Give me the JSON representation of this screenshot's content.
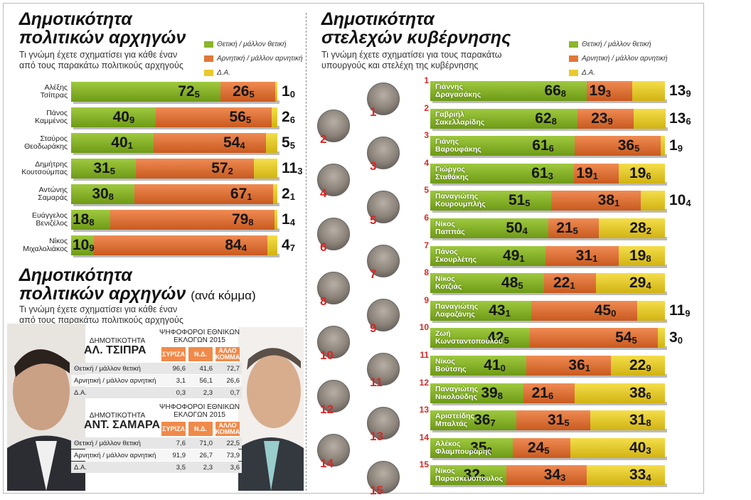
{
  "colors": {
    "positive": "#8ab52b",
    "negative": "#e2763a",
    "dontknow": "#e9c92c",
    "accent": "#d62828"
  },
  "legend": {
    "positive": "Θετική / μάλλον θετική",
    "negative": "Αρνητική / μάλλον αρνητική",
    "dontknow": "Δ.Α."
  },
  "left": {
    "title": "Δημοτικότητα\nπολιτικών αρχηγών",
    "subtitle": "Τι γνώμη έχετε σχηματίσει για κάθε έναν\nαπό τους παρακάτω πολιτικούς αρχηγούς"
  },
  "party": {
    "title": "Δημοτικότητα\nπολιτικών αρχηγών",
    "title_suffix": "(ανά κόμμα)",
    "subtitle": "Τι γνώμη έχετε σχηματίσει για κάθε έναν\nαπό τους παρακάτω πολιτικούς αρχηγούς",
    "tables": [
      {
        "caption": "ΔΗΜΟΤΙΚΟΤΗΤΑ",
        "name": "ΑΛ. ΤΣΙΠΡΑ",
        "voters": "ΨΗΦΟΦΟΡΟΙ ΕΘΝΙΚΩΝ\nΕΚΛΟΓΩΝ 2015",
        "headers": [
          "ΣΥΡΙΖΑ",
          "Ν.Δ.",
          "ΑΛΛΟ\nΚΟΜΜΑ"
        ],
        "rows": [
          {
            "label": "Θετική / μάλλον θετική",
            "v": [
              "96,6",
              "41,6",
              "72,7"
            ]
          },
          {
            "label": "Αρνητική / μάλλον αρνητική",
            "v": [
              "3,1",
              "56,1",
              "26,6"
            ]
          },
          {
            "label": "Δ.Α.",
            "v": [
              "0,3",
              "2,3",
              "0,7"
            ]
          }
        ]
      },
      {
        "caption": "ΔΗΜΟΤΙΚΟΤΗΤΑ",
        "name": "ΑΝΤ. ΣΑΜΑΡΑ",
        "voters": "ΨΗΦΟΦΟΡΟΙ ΕΘΝΙΚΩΝ\nΕΚΛΟΓΩΝ 2015",
        "headers": [
          "ΣΥΡΙΖΑ",
          "Ν.Δ.",
          "ΑΛΛΟ\nΚΟΜΜΑ"
        ],
        "rows": [
          {
            "label": "Θετική / μάλλον θετική",
            "v": [
              "7,6",
              "71,0",
              "22,5"
            ]
          },
          {
            "label": "Αρνητική / μάλλον αρνητική",
            "v": [
              "91,9",
              "26,7",
              "73,9"
            ]
          },
          {
            "label": "Δ.Α.",
            "v": [
              "3,5",
              "2,3",
              "3,6"
            ]
          }
        ]
      }
    ]
  },
  "right": {
    "title": "Δημοτικότητα\nστελεχών κυβέρνησης",
    "subtitle": "Τι γνώμη έχετε σχηματίσει για τους παρακάτω\nυπουργούς και στελέχη της κυβέρνησης"
  },
  "chart_data": [
    {
      "type": "bar",
      "stacked": true,
      "orientation": "horizontal",
      "categories": [
        "Αλέξης\nΤσίπρας",
        "Πάνος\nΚαμμένος",
        "Σταύρος\nΘεοδωράκης",
        "Δημήτρης\nΚουτσούμπας",
        "Αντώνης\nΣαμαράς",
        "Ευάγγελος\nΒενιζέλος",
        "Νίκος\nΜιχαλολιάκος"
      ],
      "series": [
        {
          "name": "Θετική / μάλλον θετική",
          "values": [
            72.5,
            40.9,
            40.1,
            31.5,
            30.8,
            18.8,
            10.9
          ],
          "labels": [
            [
              "72",
              "5"
            ],
            [
              "40",
              "9"
            ],
            [
              "40",
              "1"
            ],
            [
              "31",
              "5"
            ],
            [
              "30",
              "8"
            ],
            [
              "18",
              "8"
            ],
            [
              "10",
              "9"
            ]
          ]
        },
        {
          "name": "Αρνητική / μάλλον αρνητική",
          "values": [
            26.5,
            56.5,
            54.4,
            57.2,
            67.1,
            79.8,
            84.4
          ],
          "labels": [
            [
              "26",
              "5"
            ],
            [
              "56",
              "5"
            ],
            [
              "54",
              "4"
            ],
            [
              "57",
              "2"
            ],
            [
              "67",
              "1"
            ],
            [
              "79",
              "8"
            ],
            [
              "84",
              "4"
            ]
          ]
        },
        {
          "name": "Δ.Α.",
          "values": [
            1.0,
            2.6,
            5.5,
            11.3,
            2.1,
            1.4,
            4.7
          ],
          "labels": [
            [
              "1",
              "0"
            ],
            [
              "2",
              "6"
            ],
            [
              "5",
              "5"
            ],
            [
              "11",
              "3"
            ],
            [
              "2",
              "1"
            ],
            [
              "1",
              "4"
            ],
            [
              "4",
              "7"
            ]
          ]
        }
      ]
    },
    {
      "type": "bar",
      "stacked": true,
      "orientation": "horizontal",
      "categories": [
        "Γιάννης\nΔραγασάκης",
        "Γαβριήλ\nΣακελλαρίδης",
        "Γιάνης\nΒαρουφάκης",
        "Γιώργος\nΣταθάκης",
        "Παναγιώτης\nΚουρουμπλής",
        "Νίκος\nΠαππάς",
        "Πάνος\nΣκουρλέτης",
        "Νίκος\nΚοτζιάς",
        "Παναγιώτης\nΛαφαζάνης",
        "Ζωή\nΚωνσταντοπούλου",
        "Νίκος\nΒούτσης",
        "Παναγιώτης\nΝικολούδης",
        "Αριστείδης\nΜπαλτάς",
        "Αλέκος\nΦλαμπουράρης",
        "Νίκος\nΠαρασκευόπουλος"
      ],
      "index": [
        "1",
        "2",
        "3",
        "4",
        "5",
        "6",
        "7",
        "8",
        "9",
        "10",
        "11",
        "12",
        "13",
        "14",
        "15"
      ],
      "series": [
        {
          "name": "Θετική / μάλλον θετική",
          "values": [
            66.8,
            62.8,
            61.6,
            61.3,
            51.5,
            50.4,
            49.1,
            48.5,
            43.1,
            42.5,
            41.0,
            39.8,
            36.7,
            35.2,
            32.3
          ],
          "labels": [
            [
              "66",
              "8"
            ],
            [
              "62",
              "8"
            ],
            [
              "61",
              "6"
            ],
            [
              "61",
              "3"
            ],
            [
              "51",
              "5"
            ],
            [
              "50",
              "4"
            ],
            [
              "49",
              "1"
            ],
            [
              "48",
              "5"
            ],
            [
              "43",
              "1"
            ],
            [
              "42",
              "5"
            ],
            [
              "41",
              "0"
            ],
            [
              "39",
              "8"
            ],
            [
              "36",
              "7"
            ],
            [
              "35",
              "2"
            ],
            [
              "32",
              "3"
            ]
          ]
        },
        {
          "name": "Αρνητική / μάλλον αρνητική",
          "values": [
            19.3,
            23.9,
            36.5,
            19.1,
            38.1,
            21.5,
            31.1,
            22.1,
            45.0,
            54.5,
            36.1,
            21.6,
            31.5,
            24.5,
            34.3
          ],
          "labels": [
            [
              "19",
              "3"
            ],
            [
              "23",
              "9"
            ],
            [
              "36",
              "5"
            ],
            [
              "19",
              "1"
            ],
            [
              "38",
              "1"
            ],
            [
              "21",
              "5"
            ],
            [
              "31",
              "1"
            ],
            [
              "22",
              "1"
            ],
            [
              "45",
              "0"
            ],
            [
              "54",
              "5"
            ],
            [
              "36",
              "1"
            ],
            [
              "21",
              "6"
            ],
            [
              "31",
              "5"
            ],
            [
              "24",
              "5"
            ],
            [
              "34",
              "3"
            ]
          ]
        },
        {
          "name": "Δ.Α.",
          "values": [
            13.9,
            13.6,
            1.9,
            19.6,
            10.4,
            28.2,
            19.8,
            29.4,
            11.9,
            3.0,
            22.9,
            38.6,
            31.8,
            40.3,
            33.4
          ],
          "labels": [
            [
              "13",
              "9"
            ],
            [
              "13",
              "6"
            ],
            [
              "1",
              "9"
            ],
            [
              "19",
              "6"
            ],
            [
              "10",
              "4"
            ],
            [
              "28",
              "2"
            ],
            [
              "19",
              "8"
            ],
            [
              "29",
              "4"
            ],
            [
              "11",
              "9"
            ],
            [
              "3",
              "0"
            ],
            [
              "22",
              "9"
            ],
            [
              "38",
              "6"
            ],
            [
              "31",
              "8"
            ],
            [
              "40",
              "3"
            ],
            [
              "33",
              "4"
            ]
          ]
        }
      ]
    }
  ]
}
